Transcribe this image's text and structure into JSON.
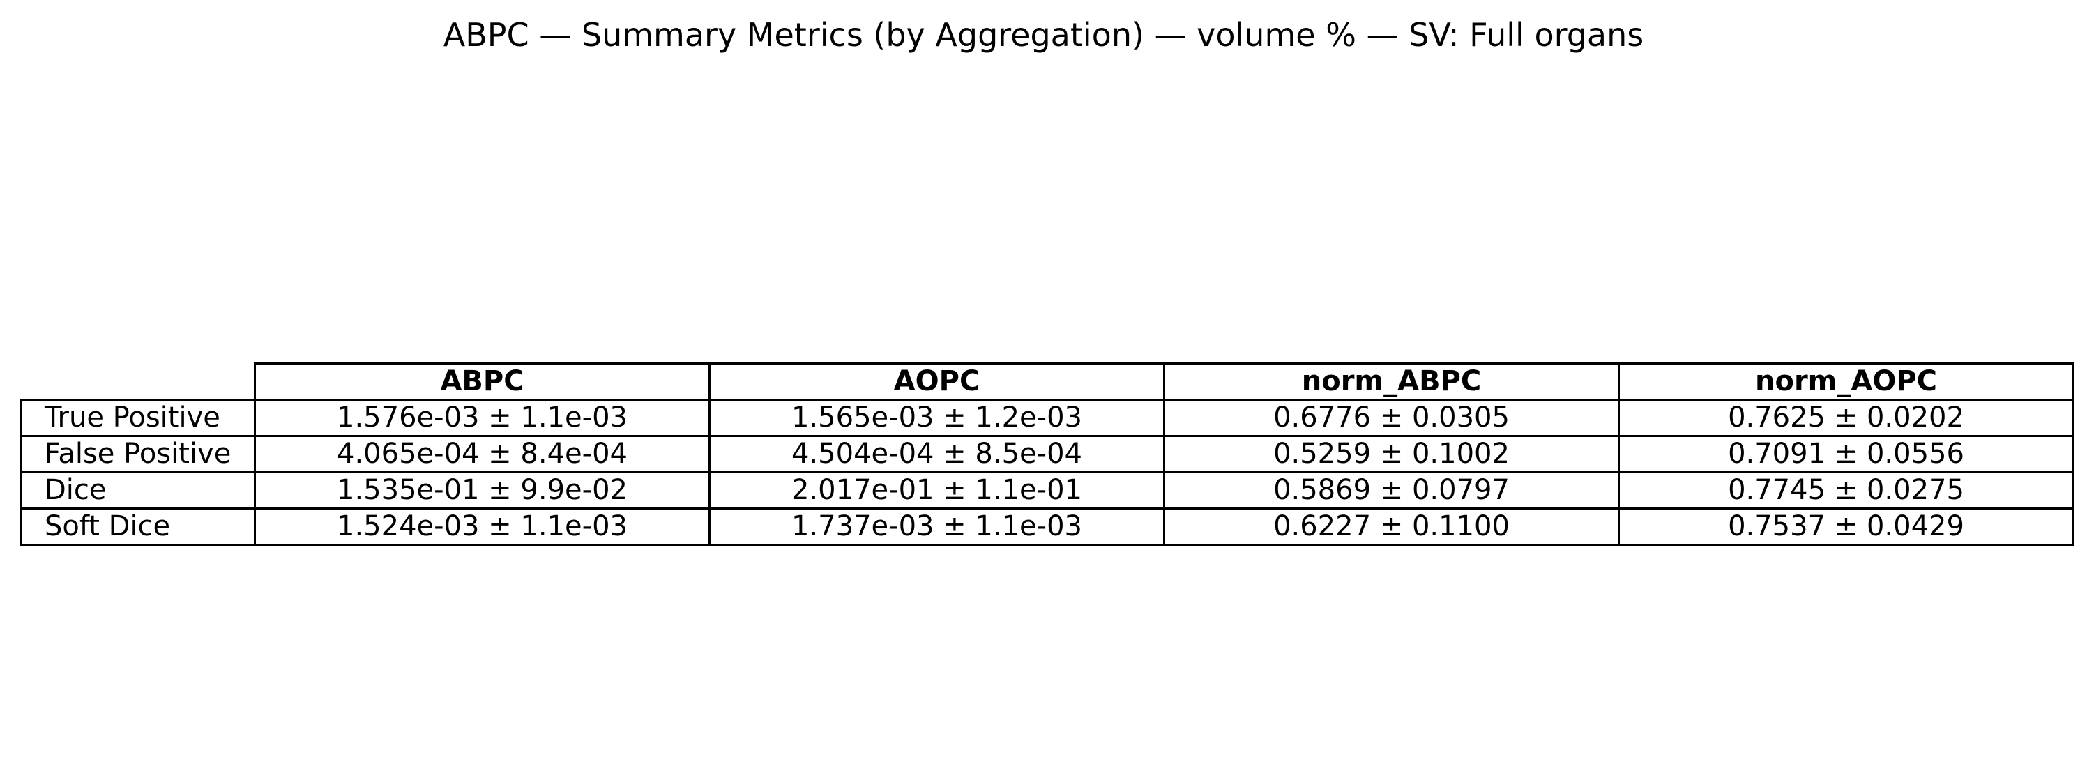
{
  "chart_data": {
    "type": "table",
    "title": "ABPC — Summary Metrics (by Aggregation) — volume % — SV: Full organs",
    "columns": [
      "ABPC",
      "AOPC",
      "norm_ABPC",
      "norm_AOPC"
    ],
    "rows": [
      {
        "label": "True Positive",
        "cells": [
          "1.576e-03 ± 1.1e-03",
          "1.565e-03 ± 1.2e-03",
          "0.6776 ± 0.0305",
          "0.7625 ± 0.0202"
        ]
      },
      {
        "label": "False Positive",
        "cells": [
          "4.065e-04 ± 8.4e-04",
          "4.504e-04 ± 8.5e-04",
          "0.5259 ± 0.1002",
          "0.7091 ± 0.0556"
        ]
      },
      {
        "label": "Dice",
        "cells": [
          "1.535e-01 ± 9.9e-02",
          "2.017e-01 ± 1.1e-01",
          "0.5869 ± 0.0797",
          "0.7745 ± 0.0275"
        ]
      },
      {
        "label": "Soft Dice",
        "cells": [
          "1.524e-03 ± 1.1e-03",
          "1.737e-03 ± 1.1e-03",
          "0.6227 ± 0.1100",
          "0.7537 ± 0.0429"
        ]
      }
    ]
  }
}
